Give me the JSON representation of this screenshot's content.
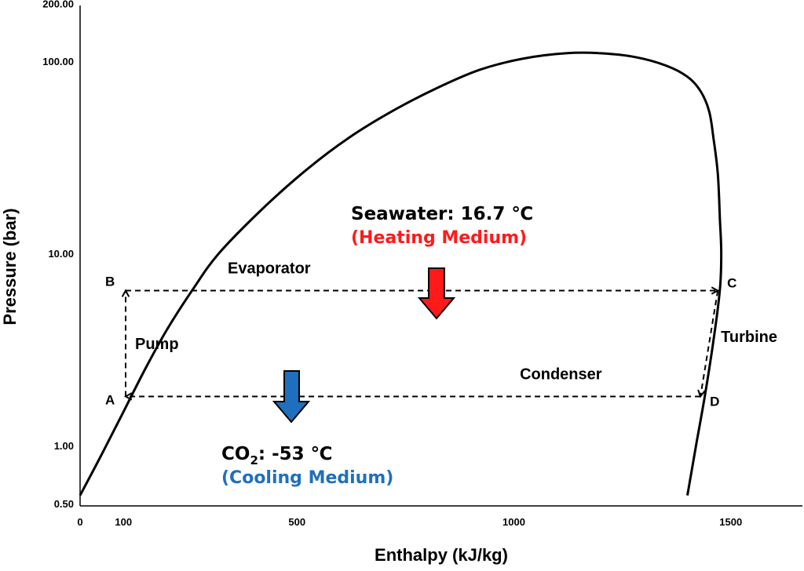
{
  "chart_data": {
    "type": "line",
    "title": "",
    "xlabel": "Enthalpy (kJ/kg)",
    "ylabel": "Pressure (bar)",
    "xlim": [
      0,
      1700
    ],
    "ylim": [
      0.5,
      200
    ],
    "y_scale": "log",
    "grid": false,
    "x_ticks": [
      {
        "value": 0,
        "label": "0"
      },
      {
        "value": 100,
        "label": "100"
      },
      {
        "value": 500,
        "label": "500"
      },
      {
        "value": 1000,
        "label": "1000"
      },
      {
        "value": 1500,
        "label": "1500"
      }
    ],
    "y_ticks": [
      {
        "value": 0.5,
        "label": "0.50"
      },
      {
        "value": 1,
        "label": "1.00"
      },
      {
        "value": 10,
        "label": "10.00"
      },
      {
        "value": 100,
        "label": "100.00"
      },
      {
        "value": 200,
        "label": "200.00"
      }
    ],
    "saturation_dome": [
      [
        0,
        0.55
      ],
      [
        50,
        0.9
      ],
      [
        100,
        1.5
      ],
      [
        150,
        2.5
      ],
      [
        200,
        4.0
      ],
      [
        260,
        6.5
      ],
      [
        320,
        10
      ],
      [
        420,
        17
      ],
      [
        520,
        27
      ],
      [
        620,
        40
      ],
      [
        720,
        55
      ],
      [
        820,
        72
      ],
      [
        920,
        90
      ],
      [
        1020,
        103
      ],
      [
        1120,
        110
      ],
      [
        1200,
        110
      ],
      [
        1280,
        105
      ],
      [
        1350,
        95
      ],
      [
        1400,
        83
      ],
      [
        1430,
        70
      ],
      [
        1450,
        55
      ],
      [
        1460,
        40
      ],
      [
        1470,
        26
      ],
      [
        1475,
        15
      ],
      [
        1478,
        10
      ],
      [
        1475,
        6.5
      ],
      [
        1460,
        3.5
      ],
      [
        1440,
        1.8
      ],
      [
        1420,
        1.0
      ],
      [
        1400,
        0.55
      ]
    ],
    "cycle_points": [
      {
        "label": "A",
        "h": 105,
        "p": 1.8
      },
      {
        "label": "B",
        "h": 105,
        "p": 6.4
      },
      {
        "label": "C",
        "h": 1470,
        "p": 6.4
      },
      {
        "label": "D",
        "h": 1430,
        "p": 1.8
      }
    ],
    "processes": [
      {
        "name": "Pump",
        "from": "A",
        "to": "B"
      },
      {
        "name": "Evaporator",
        "from": "B",
        "to": "C"
      },
      {
        "name": "Turbine",
        "from": "C",
        "to": "D"
      },
      {
        "name": "Condenser",
        "from": "D",
        "to": "A"
      }
    ],
    "annotations": {
      "heating": {
        "title": "Seawater: 16.7 ℃",
        "subtitle": "(Heating Medium)",
        "color": "#ff1a1a"
      },
      "cooling": {
        "title_prefix": "CO",
        "title_sub": "2",
        "title_suffix": ": -53 ℃",
        "subtitle": "(Cooling Medium)",
        "color": "#1f6fbf"
      }
    }
  }
}
